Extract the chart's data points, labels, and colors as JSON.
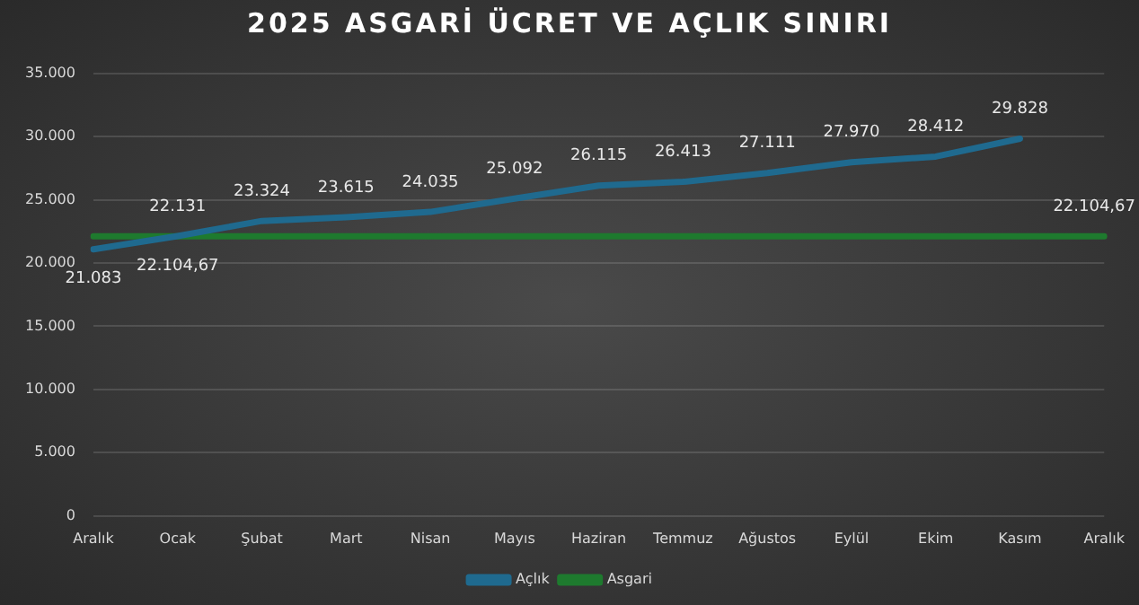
{
  "chart_data": {
    "type": "line",
    "title": "2025 ASGARİ ÜCRET VE AÇLIK SINIRI",
    "categories": [
      "Aralık",
      "Ocak",
      "Şubat",
      "Mart",
      "Nisan",
      "Mayıs",
      "Haziran",
      "Temmuz",
      "Ağustos",
      "Eylül",
      "Ekim",
      "Kasım",
      "Aralık"
    ],
    "series": [
      {
        "name": "Açlık",
        "color": "#1f6a8f",
        "values": [
          21083,
          22131,
          23324,
          23615,
          24035,
          25092,
          26115,
          26413,
          27111,
          27970,
          28412,
          29828,
          null
        ],
        "value_labels": [
          "21.083",
          "22.131",
          "23.324",
          "23.615",
          "24.035",
          "25.092",
          "26.115",
          "26.413",
          "27.111",
          "27.970",
          "28.412",
          "29.828",
          null
        ]
      },
      {
        "name": "Asgari",
        "color": "#1e7a2e",
        "values": [
          22104.67,
          22104.67,
          22104.67,
          22104.67,
          22104.67,
          22104.67,
          22104.67,
          22104.67,
          22104.67,
          22104.67,
          22104.67,
          22104.67,
          22104.67
        ],
        "value_labels": [
          null,
          "22.104,67",
          null,
          null,
          null,
          null,
          null,
          null,
          null,
          null,
          null,
          null,
          "22.104,67"
        ]
      }
    ],
    "ylim": [
      0,
      35000
    ],
    "yticks": [
      {
        "value": 0,
        "label": "0"
      },
      {
        "value": 5000,
        "label": "5.000"
      },
      {
        "value": 10000,
        "label": "10.000"
      },
      {
        "value": 15000,
        "label": "15.000"
      },
      {
        "value": 20000,
        "label": "20.000"
      },
      {
        "value": 25000,
        "label": "25.000"
      },
      {
        "value": 30000,
        "label": "30.000"
      },
      {
        "value": 35000,
        "label": "35.000"
      }
    ],
    "grid": "y",
    "legend": "bottom",
    "marker": "none",
    "line_style": "solid"
  }
}
